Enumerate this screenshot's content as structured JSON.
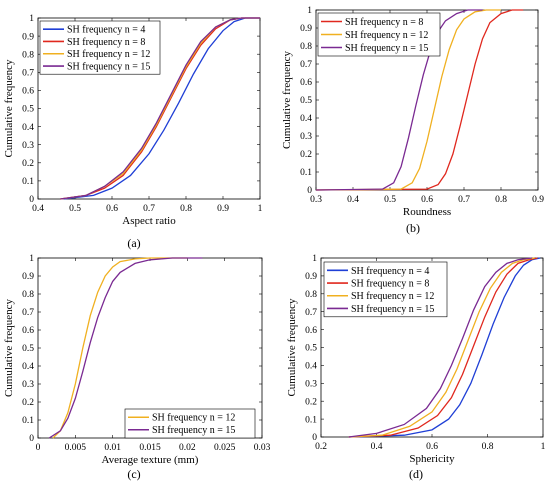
{
  "colors": {
    "n4": "#1f3fd6",
    "n8": "#e0281e",
    "n12": "#f0b020",
    "n15": "#7a2a92"
  },
  "chart_data": [
    {
      "id": "a",
      "type": "line",
      "panel_label": "(a)",
      "xlabel": "Aspect ratio",
      "ylabel": "Cumulative frequency",
      "xlim": [
        0.4,
        1.0
      ],
      "ylim": [
        0,
        1
      ],
      "xticks": [
        "0.4",
        "0.5",
        "0.6",
        "0.7",
        "0.8",
        "0.9",
        "1"
      ],
      "yticks": [
        "0",
        "0.1",
        "0.2",
        "0.3",
        "0.4",
        "0.5",
        "0.6",
        "0.7",
        "0.8",
        "0.9",
        "1"
      ],
      "legend_position": "top-left",
      "series": [
        {
          "name": "SH frequency n = 4",
          "color": "n4",
          "x": [
            0.47,
            0.55,
            0.6,
            0.65,
            0.7,
            0.74,
            0.78,
            0.82,
            0.86,
            0.9,
            0.93,
            0.96,
            1.0
          ],
          "y": [
            0,
            0.02,
            0.06,
            0.13,
            0.25,
            0.38,
            0.53,
            0.69,
            0.83,
            0.93,
            0.98,
            1.0,
            1.0
          ]
        },
        {
          "name": "SH frequency n = 8",
          "color": "n8",
          "x": [
            0.46,
            0.53,
            0.58,
            0.63,
            0.68,
            0.72,
            0.76,
            0.8,
            0.84,
            0.88,
            0.92,
            0.95,
            1.0
          ],
          "y": [
            0,
            0.02,
            0.06,
            0.13,
            0.26,
            0.4,
            0.56,
            0.72,
            0.85,
            0.94,
            0.99,
            1.0,
            1.0
          ]
        },
        {
          "name": "SH frequency n = 12",
          "color": "n12",
          "x": [
            0.46,
            0.53,
            0.58,
            0.63,
            0.68,
            0.72,
            0.76,
            0.8,
            0.84,
            0.88,
            0.92,
            0.95,
            1.0
          ],
          "y": [
            0,
            0.02,
            0.07,
            0.14,
            0.27,
            0.41,
            0.57,
            0.73,
            0.86,
            0.95,
            0.99,
            1.0,
            1.0
          ]
        },
        {
          "name": "SH frequency n = 15",
          "color": "n15",
          "x": [
            0.46,
            0.53,
            0.58,
            0.63,
            0.68,
            0.72,
            0.76,
            0.8,
            0.84,
            0.88,
            0.92,
            0.95,
            1.0
          ],
          "y": [
            0,
            0.02,
            0.07,
            0.15,
            0.28,
            0.42,
            0.58,
            0.74,
            0.87,
            0.95,
            0.99,
            1.0,
            1.0
          ]
        }
      ]
    },
    {
      "id": "b",
      "type": "line",
      "panel_label": "(b)",
      "xlabel": "Roundness",
      "ylabel": "Cumulative frequency",
      "xlim": [
        0.3,
        0.9
      ],
      "ylim": [
        0,
        1
      ],
      "xticks": [
        "0.3",
        "0.4",
        "0.5",
        "0.6",
        "0.7",
        "0.8",
        "0.9"
      ],
      "yticks": [
        "0",
        "0.1",
        "0.2",
        "0.3",
        "0.4",
        "0.5",
        "0.6",
        "0.7",
        "0.8",
        "0.9",
        "1"
      ],
      "legend_position": "top-left",
      "series": [
        {
          "name": "SH frequency n = 8",
          "color": "n8",
          "x": [
            0.3,
            0.6,
            0.63,
            0.65,
            0.67,
            0.69,
            0.71,
            0.73,
            0.75,
            0.77,
            0.8,
            0.83,
            0.86
          ],
          "y": [
            0,
            0.005,
            0.03,
            0.09,
            0.2,
            0.36,
            0.53,
            0.7,
            0.84,
            0.93,
            0.98,
            1.0,
            1.0
          ]
        },
        {
          "name": "SH frequency n = 12",
          "color": "n12",
          "x": [
            0.3,
            0.53,
            0.56,
            0.58,
            0.6,
            0.62,
            0.64,
            0.66,
            0.68,
            0.7,
            0.73,
            0.76,
            0.8
          ],
          "y": [
            0,
            0.005,
            0.04,
            0.12,
            0.27,
            0.45,
            0.63,
            0.78,
            0.89,
            0.95,
            0.99,
            1.0,
            1.0
          ]
        },
        {
          "name": "SH frequency n = 15",
          "color": "n15",
          "x": [
            0.3,
            0.48,
            0.51,
            0.53,
            0.55,
            0.57,
            0.59,
            0.61,
            0.63,
            0.65,
            0.68,
            0.71,
            0.75
          ],
          "y": [
            0,
            0.005,
            0.04,
            0.13,
            0.29,
            0.47,
            0.64,
            0.78,
            0.88,
            0.94,
            0.98,
            1.0,
            1.0
          ]
        }
      ]
    },
    {
      "id": "c",
      "type": "line",
      "panel_label": "(c)",
      "xlabel": "Average texture (mm)",
      "ylabel": "Cumulative frequency",
      "xlim": [
        0,
        0.03
      ],
      "ylim": [
        0,
        1
      ],
      "xticks": [
        "0",
        "0.005",
        "0.01",
        "0.015",
        "0.02",
        "0.025",
        "0.03"
      ],
      "yticks": [
        "0",
        "0.1",
        "0.2",
        "0.3",
        "0.4",
        "0.5",
        "0.6",
        "0.7",
        "0.8",
        "0.9",
        "1"
      ],
      "legend_position": "bottom-right",
      "series": [
        {
          "name": "SH frequency n = 12",
          "color": "n12",
          "x": [
            0.002,
            0.003,
            0.004,
            0.005,
            0.006,
            0.007,
            0.008,
            0.009,
            0.01,
            0.011,
            0.013,
            0.015,
            0.02
          ],
          "y": [
            0,
            0.04,
            0.14,
            0.3,
            0.5,
            0.68,
            0.81,
            0.9,
            0.95,
            0.98,
            0.995,
            1.0,
            1.0
          ]
        },
        {
          "name": "SH frequency n = 15",
          "color": "n15",
          "x": [
            0.0015,
            0.003,
            0.004,
            0.005,
            0.006,
            0.007,
            0.008,
            0.009,
            0.01,
            0.011,
            0.013,
            0.015,
            0.018,
            0.022
          ],
          "y": [
            0,
            0.04,
            0.11,
            0.22,
            0.37,
            0.53,
            0.67,
            0.78,
            0.87,
            0.92,
            0.97,
            0.99,
            1.0,
            1.0
          ]
        }
      ]
    },
    {
      "id": "d",
      "type": "line",
      "panel_label": "(d)",
      "xlabel": "Sphericity",
      "ylabel": "Cumulative frequency",
      "xlim": [
        0.2,
        1.0
      ],
      "ylim": [
        0,
        1
      ],
      "xticks": [
        "0.2",
        "0.4",
        "0.6",
        "0.8",
        "1"
      ],
      "yticks": [
        "0",
        "0.1",
        "0.2",
        "0.3",
        "0.4",
        "0.5",
        "0.6",
        "0.7",
        "0.8",
        "0.9",
        "1"
      ],
      "legend_position": "top-left",
      "series": [
        {
          "name": "SH frequency n = 4",
          "color": "n4",
          "x": [
            0.3,
            0.5,
            0.6,
            0.66,
            0.7,
            0.74,
            0.78,
            0.82,
            0.86,
            0.9,
            0.93,
            0.96,
            0.99
          ],
          "y": [
            0,
            0.01,
            0.04,
            0.1,
            0.18,
            0.3,
            0.46,
            0.63,
            0.78,
            0.9,
            0.96,
            0.99,
            1.0
          ]
        },
        {
          "name": "SH frequency n = 8",
          "color": "n8",
          "x": [
            0.3,
            0.45,
            0.55,
            0.62,
            0.67,
            0.71,
            0.75,
            0.79,
            0.83,
            0.87,
            0.91,
            0.95,
            0.98
          ],
          "y": [
            0,
            0.01,
            0.05,
            0.12,
            0.22,
            0.35,
            0.51,
            0.67,
            0.81,
            0.91,
            0.97,
            0.99,
            1.0
          ]
        },
        {
          "name": "SH frequency n = 12",
          "color": "n12",
          "x": [
            0.3,
            0.42,
            0.52,
            0.6,
            0.65,
            0.69,
            0.73,
            0.77,
            0.81,
            0.85,
            0.89,
            0.93,
            0.97
          ],
          "y": [
            0,
            0.01,
            0.06,
            0.14,
            0.25,
            0.38,
            0.54,
            0.7,
            0.83,
            0.92,
            0.97,
            0.99,
            1.0
          ]
        },
        {
          "name": "SH frequency n = 15",
          "color": "n15",
          "x": [
            0.3,
            0.4,
            0.5,
            0.58,
            0.63,
            0.67,
            0.71,
            0.75,
            0.79,
            0.83,
            0.87,
            0.91,
            0.96
          ],
          "y": [
            0,
            0.02,
            0.07,
            0.16,
            0.27,
            0.4,
            0.55,
            0.71,
            0.84,
            0.92,
            0.97,
            0.99,
            1.0
          ]
        }
      ]
    }
  ]
}
